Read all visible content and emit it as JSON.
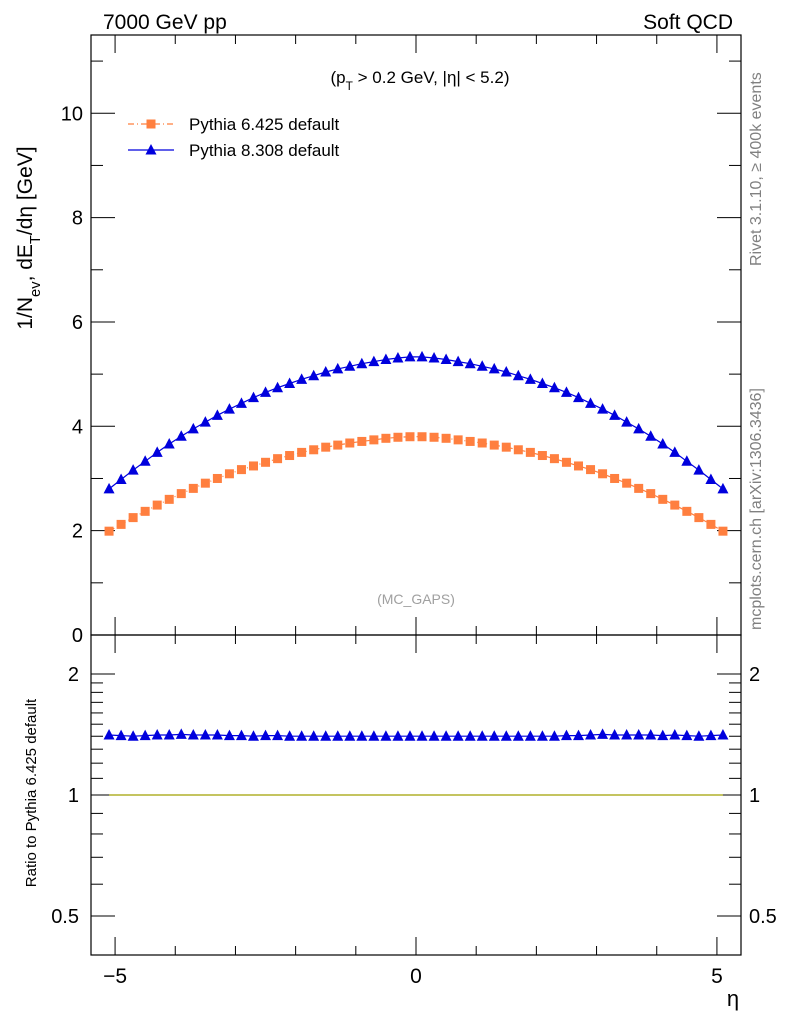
{
  "header": {
    "left": "7000 GeV pp",
    "right": "Soft QCD"
  },
  "side_labels": {
    "rivet": "Rivet 3.1.10, ≥ 400k events",
    "mcplots": "mcplots.cern.ch [arXiv:1306.3436]"
  },
  "cut_label": "(p_T > 0.2 GeV, |η| < 5.2)",
  "analysis_label": "(MC_GAPS)",
  "colors": {
    "pythia6": "#ff7f3f",
    "pythia8": "#0000dd",
    "ratio_ref_line": "#a0a000"
  },
  "chart_data": [
    {
      "type": "line",
      "panel": "main",
      "ylabel": "1/N_ev, dE_T/dη [GeV]",
      "ylim": [
        0,
        11.5
      ],
      "y_ticks": [
        "0",
        "2",
        "4",
        "6",
        "8",
        "10"
      ],
      "legend_placement": "top-left",
      "x": [
        -5.1,
        -4.9,
        -4.7,
        -4.5,
        -4.3,
        -4.1,
        -3.9,
        -3.7,
        -3.5,
        -3.3,
        -3.1,
        -2.9,
        -2.7,
        -2.5,
        -2.3,
        -2.1,
        -1.9,
        -1.7,
        -1.5,
        -1.3,
        -1.1,
        -0.9,
        -0.7,
        -0.5,
        -0.3,
        -0.1,
        0.1,
        0.3,
        0.5,
        0.7,
        0.9,
        1.1,
        1.3,
        1.5,
        1.7,
        1.9,
        2.1,
        2.3,
        2.5,
        2.7,
        2.9,
        3.1,
        3.3,
        3.5,
        3.7,
        3.9,
        4.1,
        4.3,
        4.5,
        4.7,
        4.9,
        5.1
      ],
      "series": [
        {
          "name": "Pythia 6.425 default",
          "marker": "square",
          "values": [
            1.99,
            2.12,
            2.25,
            2.37,
            2.49,
            2.6,
            2.71,
            2.81,
            2.91,
            3.0,
            3.09,
            3.17,
            3.24,
            3.31,
            3.38,
            3.44,
            3.5,
            3.55,
            3.6,
            3.64,
            3.68,
            3.71,
            3.74,
            3.77,
            3.79,
            3.8,
            3.8,
            3.79,
            3.77,
            3.74,
            3.71,
            3.68,
            3.64,
            3.6,
            3.55,
            3.5,
            3.44,
            3.38,
            3.31,
            3.24,
            3.17,
            3.09,
            3.0,
            2.91,
            2.81,
            2.71,
            2.6,
            2.49,
            2.37,
            2.25,
            2.12,
            1.99
          ]
        },
        {
          "name": "Pythia 8.308 default",
          "marker": "triangle",
          "values": [
            2.8,
            2.98,
            3.16,
            3.33,
            3.5,
            3.66,
            3.81,
            3.95,
            4.08,
            4.21,
            4.33,
            4.44,
            4.55,
            4.65,
            4.74,
            4.82,
            4.9,
            4.97,
            5.04,
            5.1,
            5.15,
            5.2,
            5.24,
            5.28,
            5.31,
            5.33,
            5.33,
            5.31,
            5.28,
            5.24,
            5.2,
            5.15,
            5.1,
            5.04,
            4.97,
            4.9,
            4.82,
            4.74,
            4.65,
            4.55,
            4.44,
            4.33,
            4.21,
            4.08,
            3.95,
            3.81,
            3.66,
            3.5,
            3.33,
            3.16,
            2.98,
            2.8
          ]
        }
      ]
    },
    {
      "type": "line",
      "panel": "ratio",
      "xlabel": "η",
      "ylabel": "Ratio to Pythia 6.425 default",
      "x_ticks": [
        "−5",
        "0",
        "5"
      ],
      "xlim": [
        -5.4,
        5.4
      ],
      "ylim": [
        0.4,
        2.5
      ],
      "y_scale": "log",
      "y_ticks": [
        "0.5",
        "1",
        "2"
      ],
      "x": [
        -5.1,
        -4.9,
        -4.7,
        -4.5,
        -4.3,
        -4.1,
        -3.9,
        -3.7,
        -3.5,
        -3.3,
        -3.1,
        -2.9,
        -2.7,
        -2.5,
        -2.3,
        -2.1,
        -1.9,
        -1.7,
        -1.5,
        -1.3,
        -1.1,
        -0.9,
        -0.7,
        -0.5,
        -0.3,
        -0.1,
        0.1,
        0.3,
        0.5,
        0.7,
        0.9,
        1.1,
        1.3,
        1.5,
        1.7,
        1.9,
        2.1,
        2.3,
        2.5,
        2.7,
        2.9,
        3.1,
        3.3,
        3.5,
        3.7,
        3.9,
        4.1,
        4.3,
        4.5,
        4.7,
        4.9,
        5.1
      ],
      "series": [
        {
          "name": "Pythia 6.425 default",
          "values": [
            1,
            1,
            1,
            1,
            1,
            1,
            1,
            1,
            1,
            1,
            1,
            1,
            1,
            1,
            1,
            1,
            1,
            1,
            1,
            1,
            1,
            1,
            1,
            1,
            1,
            1,
            1,
            1,
            1,
            1,
            1,
            1,
            1,
            1,
            1,
            1,
            1,
            1,
            1,
            1,
            1,
            1,
            1,
            1,
            1,
            1,
            1,
            1,
            1,
            1,
            1,
            1
          ]
        },
        {
          "name": "Pythia 8.308 default",
          "values": [
            1.41,
            1.405,
            1.4,
            1.405,
            1.41,
            1.41,
            1.415,
            1.41,
            1.41,
            1.41,
            1.405,
            1.405,
            1.4,
            1.405,
            1.405,
            1.4,
            1.4,
            1.4,
            1.4,
            1.4,
            1.4,
            1.4,
            1.4,
            1.4,
            1.4,
            1.4,
            1.4,
            1.4,
            1.4,
            1.4,
            1.4,
            1.4,
            1.4,
            1.4,
            1.4,
            1.4,
            1.4,
            1.4,
            1.405,
            1.405,
            1.41,
            1.415,
            1.41,
            1.41,
            1.41,
            1.41,
            1.405,
            1.41,
            1.405,
            1.4,
            1.405,
            1.41
          ]
        }
      ]
    }
  ]
}
